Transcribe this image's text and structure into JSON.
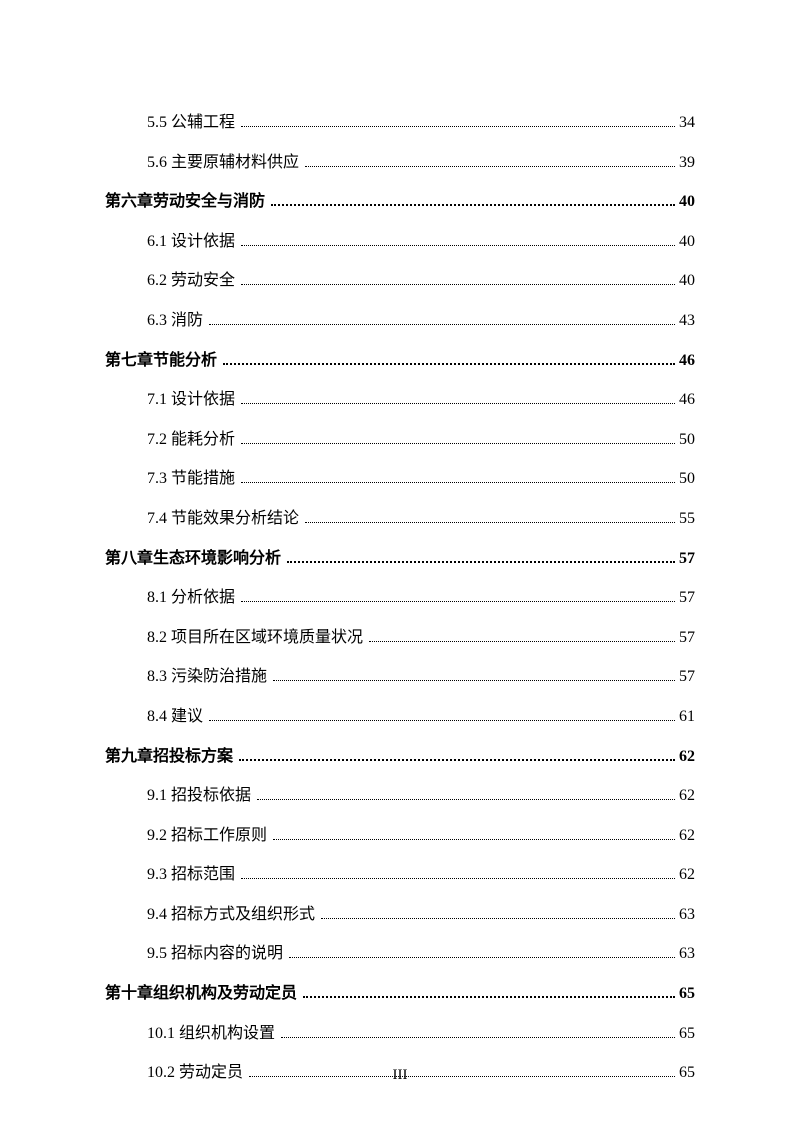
{
  "entries": [
    {
      "level": "section",
      "label": "5.5 公辅工程",
      "page": "34"
    },
    {
      "level": "section",
      "label": "5.6 主要原辅材料供应",
      "page": "39"
    },
    {
      "level": "chapter",
      "label": "第六章劳动安全与消防",
      "page": "40"
    },
    {
      "level": "section",
      "label": "6.1 设计依据",
      "page": "40"
    },
    {
      "level": "section",
      "label": "6.2 劳动安全",
      "page": "40"
    },
    {
      "level": "section",
      "label": "6.3 消防",
      "page": "43"
    },
    {
      "level": "chapter",
      "label": "第七章节能分析",
      "page": "46"
    },
    {
      "level": "section",
      "label": "7.1 设计依据",
      "page": "46"
    },
    {
      "level": "section",
      "label": "7.2 能耗分析",
      "page": "50"
    },
    {
      "level": "section",
      "label": "7.3 节能措施",
      "page": "50"
    },
    {
      "level": "section",
      "label": "7.4 节能效果分析结论",
      "page": "55"
    },
    {
      "level": "chapter",
      "label": "第八章生态环境影响分析",
      "page": "57"
    },
    {
      "level": "section",
      "label": "8.1 分析依据",
      "page": "57"
    },
    {
      "level": "section",
      "label": "8.2 项目所在区域环境质量状况",
      "page": "57"
    },
    {
      "level": "section",
      "label": "8.3 污染防治措施",
      "page": "57"
    },
    {
      "level": "section",
      "label": "8.4 建议",
      "page": "61"
    },
    {
      "level": "chapter",
      "label": "第九章招投标方案",
      "page": "62"
    },
    {
      "level": "section",
      "label": "9.1 招投标依据",
      "page": "62"
    },
    {
      "level": "section",
      "label": "9.2 招标工作原则",
      "page": "62"
    },
    {
      "level": "section",
      "label": "9.3 招标范围",
      "page": "62"
    },
    {
      "level": "section",
      "label": "9.4 招标方式及组织形式",
      "page": "63"
    },
    {
      "level": "section",
      "label": "9.5 招标内容的说明",
      "page": "63"
    },
    {
      "level": "chapter",
      "label": "第十章组织机构及劳动定员",
      "page": "65"
    },
    {
      "level": "section",
      "label": "10.1 组织机构设置",
      "page": "65"
    },
    {
      "level": "section",
      "label": "10.2 劳动定员",
      "page": "65"
    }
  ],
  "pageNumber": "III",
  "colors": {
    "text": "#000000",
    "background": "#ffffff"
  },
  "fontSize": 16
}
